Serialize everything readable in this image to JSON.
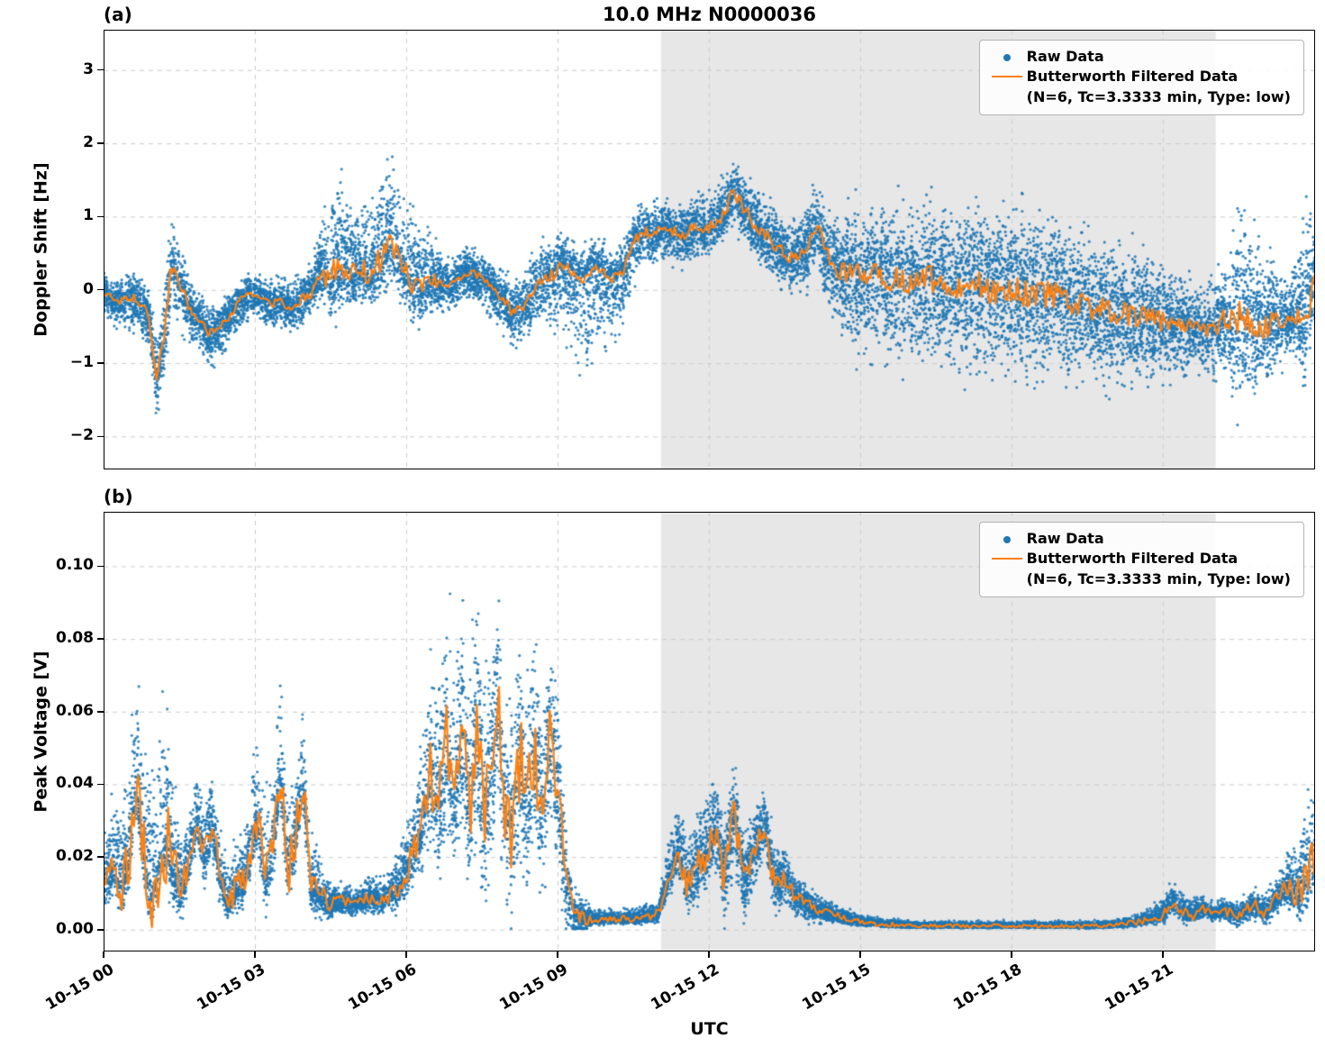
{
  "title": "10.0 MHz N0000036",
  "xlabel": "UTC",
  "colors": {
    "raw": "#1f77b4",
    "filtered": "#ff7f0e",
    "shaded_region": "#e7e7e7",
    "grid": "#cccccc",
    "axis": "#000000"
  },
  "legend": {
    "raw": "Raw Data",
    "filtered_line1": "Butterworth Filtered Data",
    "filtered_line2": "(N=6, Tc=3.3333 min, Type: low)"
  },
  "chart_data": [
    {
      "type": "scatter",
      "panel_label": "(a)",
      "title": "10.0 MHz N0000036",
      "ylabel": "Doppler Shift [Hz]",
      "ylim": [
        -2.45,
        3.55
      ],
      "yticks": [
        -2,
        -1,
        0,
        1,
        2,
        3
      ],
      "ytick_labels": [
        "−2",
        "−1",
        "0",
        "1",
        "2",
        "3"
      ],
      "xlim": [
        0,
        24.02
      ],
      "xticks": [
        0,
        3,
        6,
        9,
        12,
        15,
        18,
        21
      ],
      "xtick_labels": [
        "10-15 00",
        "10-15 03",
        "10-15 06",
        "10-15 09",
        "10-15 12",
        "10-15 15",
        "10-15 18",
        "10-15 21"
      ],
      "x_axis_unit": "UTC",
      "grid": true,
      "legend_position": "upper right",
      "shaded_region": [
        11.05,
        22.05
      ],
      "series": [
        {
          "name": "Raw Data",
          "kind": "scatter",
          "color": "#1f77b4",
          "n_points": 14000,
          "seed": 7,
          "envelope": {
            "x": [
              0.0,
              0.8,
              1.05,
              1.35,
              1.8,
              2.3,
              3.0,
              3.6,
              4.2,
              4.6,
              5.0,
              5.5,
              6.2,
              6.8,
              7.5,
              8.2,
              9.0,
              9.5,
              10.0,
              10.6,
              11.5,
              12.5,
              13.5,
              14.2,
              15.0,
              16.0,
              17.0,
              18.0,
              19.0,
              20.0,
              21.0,
              21.7,
              22.2,
              22.5,
              23.0,
              23.5,
              23.9,
              24.0
            ],
            "above": [
              0.4,
              0.5,
              0.8,
              0.9,
              0.5,
              0.45,
              0.4,
              0.5,
              0.6,
              2.0,
              1.1,
              1.85,
              1.4,
              0.5,
              0.5,
              0.6,
              0.7,
              0.6,
              0.55,
              0.6,
              0.6,
              0.8,
              0.7,
              1.0,
              1.3,
              1.5,
              1.6,
              1.7,
              1.5,
              1.4,
              1.2,
              0.7,
              1.2,
              2.3,
              1.4,
              0.7,
              2.2,
              1.2
            ],
            "below": [
              0.45,
              0.7,
              1.0,
              0.9,
              0.55,
              0.7,
              0.45,
              0.5,
              0.5,
              0.9,
              0.6,
              0.8,
              0.7,
              0.55,
              0.55,
              0.7,
              1.2,
              2.0,
              1.4,
              0.7,
              0.6,
              0.6,
              0.7,
              0.8,
              1.8,
              1.6,
              1.7,
              1.8,
              1.6,
              1.4,
              1.2,
              0.8,
              1.0,
              1.7,
              1.2,
              0.7,
              1.3,
              1.0
            ]
          }
        },
        {
          "name": "Butterworth Filtered Data (N=6, Tc=3.3333 min, Type: low)",
          "kind": "line",
          "color": "#ff7f0e",
          "jitter_scale": 0.12,
          "x": [
            0,
            0.3,
            0.6,
            0.9,
            1.05,
            1.2,
            1.35,
            1.5,
            1.7,
            1.9,
            2.1,
            2.3,
            2.5,
            2.7,
            2.9,
            3.1,
            3.3,
            3.5,
            3.7,
            3.9,
            4.1,
            4.3,
            4.5,
            4.7,
            4.9,
            5.1,
            5.3,
            5.5,
            5.7,
            5.9,
            6.1,
            6.3,
            6.5,
            6.7,
            6.9,
            7.1,
            7.3,
            7.5,
            7.7,
            7.9,
            8.1,
            8.3,
            8.5,
            8.7,
            8.9,
            9.1,
            9.3,
            9.5,
            9.7,
            9.9,
            10.1,
            10.3,
            10.5,
            10.7,
            10.9,
            11.1,
            11.3,
            11.5,
            11.7,
            11.9,
            12.1,
            12.3,
            12.5,
            12.65,
            12.8,
            13.0,
            13.2,
            13.4,
            13.6,
            13.8,
            14.0,
            14.15,
            14.3,
            14.5,
            14.7,
            15.0,
            15.3,
            15.6,
            16.0,
            16.4,
            16.8,
            17.2,
            17.6,
            18.0,
            18.4,
            18.8,
            19.2,
            19.6,
            20.0,
            20.4,
            20.8,
            21.2,
            21.6,
            22.0,
            22.2,
            22.4,
            22.6,
            22.8,
            23.0,
            23.2,
            23.4,
            23.6,
            23.8,
            24.0
          ],
          "y": [
            -0.05,
            -0.15,
            -0.1,
            -0.35,
            -1.25,
            -0.6,
            0.35,
            0.1,
            -0.25,
            -0.4,
            -0.6,
            -0.5,
            -0.35,
            -0.15,
            -0.05,
            -0.1,
            -0.2,
            -0.15,
            -0.25,
            -0.15,
            -0.05,
            0.25,
            0.15,
            0.3,
            0.2,
            0.3,
            0.2,
            0.45,
            0.6,
            0.4,
            0.1,
            0.0,
            0.15,
            0.1,
            0.05,
            0.2,
            0.25,
            0.15,
            0.05,
            -0.1,
            -0.3,
            -0.25,
            0.0,
            0.15,
            0.2,
            0.35,
            0.25,
            0.15,
            0.3,
            0.25,
            0.15,
            0.25,
            0.65,
            0.8,
            0.75,
            0.85,
            0.8,
            0.75,
            0.85,
            0.8,
            0.9,
            1.05,
            1.35,
            1.15,
            1.0,
            0.8,
            0.7,
            0.55,
            0.45,
            0.5,
            0.6,
            0.9,
            0.5,
            0.3,
            0.25,
            0.2,
            0.25,
            0.15,
            0.1,
            0.15,
            0.05,
            0.1,
            0.0,
            0.05,
            -0.1,
            -0.05,
            -0.2,
            -0.25,
            -0.3,
            -0.35,
            -0.4,
            -0.45,
            -0.5,
            -0.55,
            -0.4,
            -0.5,
            -0.3,
            -0.45,
            -0.55,
            -0.4,
            -0.5,
            -0.35,
            -0.45,
            0.1
          ]
        }
      ]
    },
    {
      "type": "scatter",
      "panel_label": "(b)",
      "ylabel": "Peak Voltage [V]",
      "ylim": [
        -0.006,
        0.115
      ],
      "yticks": [
        0.0,
        0.02,
        0.04,
        0.06,
        0.08,
        0.1
      ],
      "ytick_labels": [
        "0.00",
        "0.02",
        "0.04",
        "0.06",
        "0.08",
        "0.10"
      ],
      "xlim": [
        0,
        24.02
      ],
      "xticks": [
        0,
        3,
        6,
        9,
        12,
        15,
        18,
        21
      ],
      "xtick_labels": [
        "10-15 00",
        "10-15 03",
        "10-15 06",
        "10-15 09",
        "10-15 12",
        "10-15 15",
        "10-15 18",
        "10-15 21"
      ],
      "x_axis_unit": "UTC",
      "grid": true,
      "legend_position": "upper right",
      "shaded_region": [
        11.05,
        22.05
      ],
      "series": [
        {
          "name": "Raw Data",
          "kind": "scatter",
          "color": "#1f77b4",
          "n_points": 14000,
          "seed": 21,
          "envelope": {
            "x": [
              0.0,
              0.65,
              1.2,
              1.6,
              2.1,
              2.5,
              3.0,
              3.5,
              4.0,
              4.5,
              5.0,
              5.6,
              6.1,
              6.6,
              7.1,
              7.6,
              7.9,
              8.5,
              9.0,
              9.3,
              9.7,
              10.5,
              11.0,
              11.5,
              12.0,
              12.5,
              13.0,
              13.5,
              14.0,
              14.5,
              15.0,
              16.0,
              17.0,
              18.0,
              19.0,
              20.0,
              20.7,
              21.2,
              22.0,
              22.7,
              23.3,
              24.0
            ],
            "above": [
              0.018,
              0.042,
              0.055,
              0.02,
              0.02,
              0.015,
              0.033,
              0.035,
              0.025,
              0.008,
              0.006,
              0.009,
              0.022,
              0.05,
              0.055,
              0.055,
              0.047,
              0.05,
              0.035,
              0.012,
              0.004,
              0.004,
              0.006,
              0.022,
              0.025,
              0.022,
              0.016,
              0.012,
              0.007,
              0.004,
              0.003,
              0.002,
              0.002,
              0.002,
              0.002,
              0.002,
              0.004,
              0.007,
              0.005,
              0.006,
              0.008,
              0.03
            ],
            "below": [
              0.01,
              0.016,
              0.018,
              0.012,
              0.014,
              0.006,
              0.013,
              0.016,
              0.012,
              0.006,
              0.005,
              0.007,
              0.012,
              0.03,
              0.035,
              0.04,
              0.045,
              0.035,
              0.03,
              0.012,
              0.002,
              0.002,
              0.003,
              0.013,
              0.016,
              0.02,
              0.015,
              0.01,
              0.006,
              0.003,
              0.0015,
              0.0008,
              0.0008,
              0.0008,
              0.0008,
              0.001,
              0.002,
              0.005,
              0.003,
              0.005,
              0.007,
              0.015
            ]
          }
        },
        {
          "name": "Butterworth Filtered Data (N=6, Tc=3.3333 min, Type: low)",
          "kind": "line",
          "color": "#ff7f0e",
          "jitter_scale": 0.25,
          "x": [
            0,
            0.2,
            0.35,
            0.5,
            0.65,
            0.8,
            0.95,
            1.1,
            1.25,
            1.4,
            1.55,
            1.7,
            1.85,
            2.0,
            2.15,
            2.3,
            2.45,
            2.6,
            2.75,
            2.9,
            3.05,
            3.2,
            3.35,
            3.5,
            3.65,
            3.8,
            3.95,
            4.1,
            4.3,
            4.5,
            4.7,
            4.9,
            5.1,
            5.3,
            5.5,
            5.7,
            5.9,
            6.1,
            6.3,
            6.5,
            6.65,
            6.8,
            6.95,
            7.1,
            7.25,
            7.4,
            7.55,
            7.7,
            7.8,
            7.95,
            8.1,
            8.25,
            8.4,
            8.55,
            8.7,
            8.85,
            9.0,
            9.15,
            9.3,
            9.5,
            9.8,
            10.2,
            10.6,
            11.0,
            11.2,
            11.4,
            11.6,
            11.8,
            12.0,
            12.15,
            12.3,
            12.5,
            12.7,
            12.9,
            13.1,
            13.3,
            13.5,
            13.7,
            13.9,
            14.2,
            14.5,
            15.0,
            15.5,
            16.0,
            16.5,
            17.0,
            17.5,
            18.0,
            18.5,
            19.0,
            19.5,
            20.0,
            20.5,
            21.0,
            21.2,
            21.4,
            21.6,
            21.8,
            22.0,
            22.2,
            22.5,
            22.8,
            23.0,
            23.3,
            23.5,
            23.7,
            24.0
          ],
          "y": [
            0.012,
            0.018,
            0.012,
            0.02,
            0.041,
            0.02,
            0.012,
            0.02,
            0.025,
            0.014,
            0.01,
            0.02,
            0.03,
            0.02,
            0.03,
            0.015,
            0.007,
            0.01,
            0.012,
            0.02,
            0.03,
            0.014,
            0.02,
            0.045,
            0.016,
            0.025,
            0.042,
            0.012,
            0.009,
            0.007,
            0.008,
            0.007,
            0.008,
            0.009,
            0.008,
            0.01,
            0.013,
            0.02,
            0.028,
            0.045,
            0.032,
            0.05,
            0.038,
            0.052,
            0.035,
            0.055,
            0.028,
            0.045,
            0.063,
            0.035,
            0.028,
            0.048,
            0.032,
            0.05,
            0.03,
            0.052,
            0.04,
            0.015,
            0.005,
            0.003,
            0.0025,
            0.003,
            0.003,
            0.004,
            0.015,
            0.022,
            0.012,
            0.018,
            0.022,
            0.03,
            0.014,
            0.032,
            0.012,
            0.022,
            0.03,
            0.012,
            0.015,
            0.009,
            0.007,
            0.005,
            0.004,
            0.002,
            0.0015,
            0.001,
            0.001,
            0.001,
            0.001,
            0.001,
            0.001,
            0.001,
            0.001,
            0.0012,
            0.002,
            0.004,
            0.008,
            0.005,
            0.004,
            0.006,
            0.004,
            0.005,
            0.004,
            0.007,
            0.005,
            0.009,
            0.012,
            0.01,
            0.02
          ]
        }
      ]
    }
  ]
}
